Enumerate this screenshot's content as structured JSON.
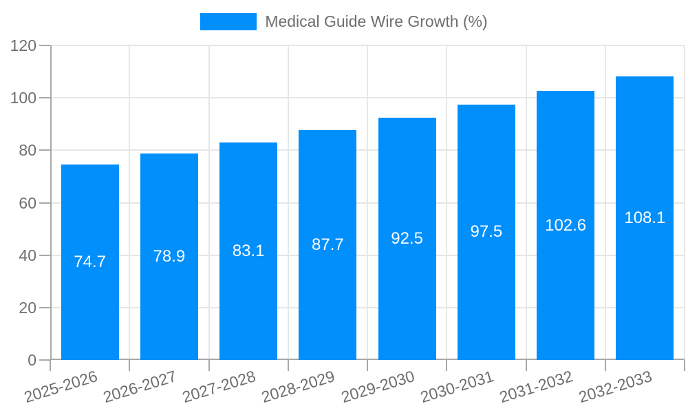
{
  "legend": {
    "label": "Medical Guide Wire Growth (%)"
  },
  "colors": {
    "bar": "#008ffb",
    "grid": "#e7e7e7",
    "axis": "#a8a8a8",
    "text": "#6e6e6e",
    "bar_label": "#ffffff",
    "background": "#ffffff"
  },
  "chart_data": {
    "type": "bar",
    "title": "Medical Guide Wire Growth (%)",
    "categories": [
      "2025-2026",
      "2026-2027",
      "2027-2028",
      "2028-2029",
      "2029-2030",
      "2030-2031",
      "2031-2032",
      "2032-2033"
    ],
    "values": [
      74.7,
      78.9,
      83.1,
      87.7,
      92.5,
      97.5,
      102.6,
      108.1
    ],
    "series": [
      {
        "name": "Medical Guide Wire Growth (%)",
        "values": [
          74.7,
          78.9,
          83.1,
          87.7,
          92.5,
          97.5,
          102.6,
          108.1
        ]
      }
    ],
    "xlabel": "",
    "ylabel": "",
    "ylim": [
      0,
      120
    ],
    "yticks": [
      0,
      20,
      40,
      60,
      80,
      100,
      120
    ],
    "grid": true,
    "legend_position": "top-center",
    "value_labels": "inside-center-white"
  }
}
